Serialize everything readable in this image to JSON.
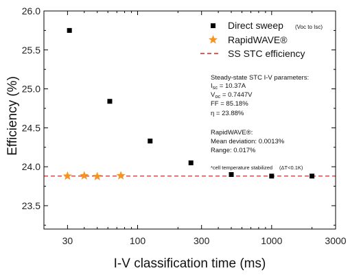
{
  "chart_data": {
    "type": "scatter",
    "xlabel": "I-V classification time (ms)",
    "ylabel": "Efficiency (%)",
    "xscale": "log",
    "xlim": [
      20,
      3000
    ],
    "ylim": [
      23.2,
      26.0
    ],
    "xticks": [
      {
        "value": 30,
        "label": "30"
      },
      {
        "value": 100,
        "label": "100"
      },
      {
        "value": 300,
        "label": "300"
      },
      {
        "value": 1000,
        "label": "1000"
      },
      {
        "value": 3000,
        "label": "3000"
      }
    ],
    "yticks": [
      {
        "value": 23.5,
        "label": "23.5"
      },
      {
        "value": 24.0,
        "label": "24.0"
      },
      {
        "value": 24.5,
        "label": "24.5"
      },
      {
        "value": 25.0,
        "label": "25.0"
      },
      {
        "value": 25.5,
        "label": "25.5"
      },
      {
        "value": 26.0,
        "label": "26.0"
      }
    ],
    "grid": false,
    "legend_position": "top-right",
    "series": [
      {
        "name": "Direct sweep",
        "name_note": "(Voc to Isc)",
        "marker": "square",
        "color": "#000000",
        "points": [
          {
            "x": 31,
            "y": 25.75
          },
          {
            "x": 62,
            "y": 24.84
          },
          {
            "x": 124,
            "y": 24.33
          },
          {
            "x": 250,
            "y": 24.05
          },
          {
            "x": 500,
            "y": 23.9
          },
          {
            "x": 1000,
            "y": 23.88
          },
          {
            "x": 2000,
            "y": 23.88
          }
        ]
      },
      {
        "name": "RapidWAVE®",
        "marker": "star",
        "color": "#f7931e",
        "points": [
          {
            "x": 30,
            "y": 23.88
          },
          {
            "x": 40,
            "y": 23.885
          },
          {
            "x": 50,
            "y": 23.875
          },
          {
            "x": 75,
            "y": 23.885
          }
        ]
      },
      {
        "name": "SS STC efficiency",
        "type": "hline",
        "style": "dashed",
        "color": "#e02020",
        "y": 23.88
      }
    ],
    "annotation": {
      "header": "Steady-state STC I-V parameters:",
      "isc_value": "= 10.37A",
      "voc_value": "= 0.7447V",
      "ff": "FF = 85.18%",
      "eta": "η = 23.88%",
      "rapid_header": "RapidWAVE®:",
      "mean_dev": "Mean deviation: 0.0013%",
      "range": "Range: 0.017%",
      "note": "*cell temperature stabilized",
      "note_delta": "(ΔT<0.1K)"
    }
  }
}
